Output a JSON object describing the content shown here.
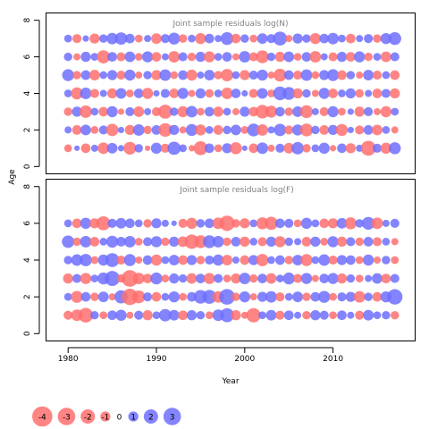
{
  "chart_data": {
    "type": "scatter",
    "xlabel": "Year",
    "ylabel": "Age",
    "x_ticks": [
      1980,
      1990,
      2000,
      2010
    ],
    "y_ticks": [
      0,
      2,
      4,
      6,
      8
    ],
    "xlim": [
      1977.5,
      2019.3
    ],
    "ylim": [
      -0.4,
      8.4
    ],
    "years": [
      1980,
      1981,
      1982,
      1983,
      1984,
      1985,
      1986,
      1987,
      1988,
      1989,
      1990,
      1991,
      1992,
      1993,
      1994,
      1995,
      1996,
      1997,
      1998,
      1999,
      2000,
      2001,
      2002,
      2003,
      2004,
      2005,
      2006,
      2007,
      2008,
      2009,
      2010,
      2011,
      2012,
      2013,
      2014,
      2015,
      2016,
      2017
    ],
    "colors": {
      "negative": "#ff6e6e",
      "positive": "#6e6eff"
    },
    "panels": [
      {
        "title": "Joint sample residuals log(N)",
        "ages": [
          1,
          2,
          3,
          4,
          5,
          6,
          7
        ],
        "residuals": [
          [
            -0.6,
            0.3,
            -0.9,
            0.5,
            -1.3,
            1.1,
            0.4,
            -1.6,
            0.7,
            -0.3,
            1.2,
            -0.8,
            1.7,
            0.6,
            -0.4,
            -1.9,
            0.9,
            -0.6,
            1.0,
            -1.4,
            0.3,
            -0.9,
            1.3,
            -0.5,
            0.8,
            -1.1,
            1.5,
            -0.7,
            0.6,
            1.2,
            -0.4,
            0.9,
            -1.0,
            0.5,
            -2.2,
            0.8,
            -1.2,
            1.4
          ],
          [
            0.5,
            -0.9,
            1.1,
            -0.6,
            0.8,
            -1.5,
            0.4,
            -1.0,
            1.3,
            -0.7,
            0.9,
            -1.8,
            1.0,
            -0.5,
            1.4,
            -1.2,
            0.6,
            -0.9,
            0.7,
            1.1,
            -0.6,
            1.6,
            -1.3,
            0.5,
            1.5,
            -0.8,
            1.2,
            -1.6,
            0.7,
            -0.9,
            1.0,
            -1.4,
            0.4,
            -0.8,
            0.9,
            -1.1,
            0.6,
            -0.5
          ],
          [
            -0.7,
            1.0,
            -1.5,
            0.6,
            -0.9,
            1.2,
            -0.4,
            0.8,
            -1.1,
            0.5,
            -0.8,
            -1.9,
            0.7,
            -1.2,
            1.3,
            -0.6,
            0.9,
            -1.0,
            0.6,
            -0.5,
            1.0,
            -0.9,
            -1.8,
            -1.4,
            0.9,
            -0.7,
            1.1,
            -1.6,
            0.5,
            -0.8,
            1.2,
            -0.6,
            0.4,
            -1.0,
            0.8,
            -0.5,
            -1.2,
            0.6
          ],
          [
            0.6,
            -1.4,
            1.3,
            -0.8,
            0.5,
            -1.0,
            1.1,
            -0.6,
            0.9,
            -1.2,
            0.4,
            0.8,
            -0.9,
            1.2,
            -0.5,
            1.0,
            -0.7,
            0.6,
            -1.3,
            0.9,
            0.4,
            -0.8,
            1.1,
            -0.6,
            1.8,
            1.6,
            -1.0,
            0.7,
            -0.5,
            1.2,
            -0.9,
            0.6,
            1.0,
            -0.7,
            0.5,
            -0.9,
            0.8,
            -1.0
          ],
          [
            1.4,
            -0.7,
            0.9,
            -1.1,
            0.6,
            1.0,
            -0.8,
            1.2,
            -0.5,
            0.7,
            -1.0,
            1.3,
            -0.6,
            0.9,
            -1.2,
            0.5,
            1.1,
            -0.7,
            -1.5,
            0.6,
            -1.0,
            0.8,
            1.2,
            -0.5,
            -1.6,
            0.9,
            -0.8,
            1.3,
            -0.6,
            1.0,
            1.4,
            -0.9,
            0.7,
            -0.5,
            1.1,
            -0.8,
            0.6,
            -0.9
          ],
          [
            0.7,
            -0.5,
            1.0,
            0.6,
            -1.7,
            0.9,
            -0.8,
            1.1,
            -0.6,
            1.2,
            -0.9,
            0.5,
            -1.3,
            0.8,
            -0.7,
            1.0,
            -1.2,
            0.6,
            0.9,
            -0.5,
            1.3,
            -0.8,
            -1.6,
            0.7,
            -1.0,
            1.1,
            -0.6,
            0.9,
            -1.3,
            0.5,
            -0.8,
            1.0,
            -0.9,
            1.2,
            -0.7,
            0.6,
            -1.1,
            0.8
          ],
          [
            0.6,
            -0.8,
            0.4,
            -1.0,
            0.7,
            1.3,
            1.5,
            0.9,
            -0.6,
            0.5,
            -1.1,
            0.8,
            1.4,
            -0.7,
            0.6,
            -1.2,
            0.9,
            0.5,
            1.6,
            -0.9,
            0.7,
            -0.6,
            1.1,
            0.8,
            1.9,
            -0.5,
            1.0,
            0.7,
            -1.2,
            0.9,
            1.3,
            0.6,
            -0.9,
            0.5,
            0.8,
            -0.7,
            1.2,
            1.6
          ]
        ]
      },
      {
        "title": "Joint sample residuals log(F)",
        "ages": [
          1,
          2,
          3,
          4,
          5,
          6
        ],
        "residuals": [
          [
            -0.8,
            -1.3,
            -2.1,
            0.7,
            -0.6,
            0.9,
            1.2,
            -0.5,
            0.8,
            -1.0,
            0.6,
            1.5,
            1.1,
            -0.9,
            1.0,
            0.7,
            -0.6,
            1.3,
            1.9,
            -1.0,
            -0.5,
            -2.0,
            0.6,
            1.1,
            -0.8,
            0.9,
            0.5,
            -0.7,
            1.0,
            0.8,
            -0.6,
            0.9,
            0.5,
            -0.8,
            1.1,
            0.6,
            0.7,
            -0.7
          ],
          [
            0.6,
            -1.4,
            0.9,
            -0.7,
            1.1,
            -0.5,
            1.7,
            -2.6,
            -1.6,
            0.8,
            -0.9,
            0.6,
            1.2,
            -0.6,
            0.9,
            1.8,
            1.9,
            -1.3,
            2.4,
            -0.7,
            1.2,
            -0.5,
            1.0,
            1.3,
            -0.8,
            0.6,
            1.1,
            -0.7,
            0.9,
            1.4,
            -0.6,
            0.8,
            1.0,
            -1.3,
            0.7,
            -0.9,
            1.2,
            2.3
          ],
          [
            -1.0,
            0.8,
            -1.2,
            0.6,
            1.4,
            2.2,
            -0.7,
            -2.7,
            -1.3,
            -0.9,
            1.4,
            -0.6,
            1.0,
            0.7,
            -1.1,
            0.9,
            -1.2,
            0.8,
            -0.6,
            -1.0,
            1.3,
            -0.7,
            0.9,
            -1.1,
            0.6,
            1.4,
            -0.8,
            1.2,
            -0.5,
            0.9,
            1.2,
            -1.0,
            0.7,
            -0.6,
            0.5,
            1.1,
            -0.9,
            0.8
          ],
          [
            0.7,
            1.3,
            1.5,
            -0.6,
            1.2,
            1.9,
            -0.8,
            1.4,
            -0.5,
            0.9,
            -1.2,
            0.6,
            1.1,
            -0.9,
            1.0,
            -0.7,
            0.8,
            1.2,
            -1.1,
            0.5,
            -0.9,
            1.0,
            -1.5,
            0.6,
            0.9,
            -0.7,
            1.1,
            -1.4,
            0.6,
            1.3,
            -0.8,
            1.0,
            0.9,
            -0.6,
            1.2,
            -0.5,
            0.7,
            -0.6
          ],
          [
            1.5,
            -0.7,
            1.3,
            -0.9,
            0.6,
            1.4,
            0.9,
            1.3,
            -0.6,
            0.8,
            1.2,
            -0.7,
            1.0,
            -1.1,
            -2.0,
            -1.6,
            1.6,
            1.3,
            -0.7,
            0.9,
            -1.0,
            0.6,
            -0.8,
            1.0,
            -1.2,
            0.7,
            0.5,
            -0.9,
            1.0,
            -0.6,
            1.2,
            -1.0,
            0.8,
            -0.7,
            0.9,
            -0.8,
            0.6,
            -0.5
          ],
          [
            0.6,
            -0.9,
            1.2,
            -1.0,
            -1.9,
            0.8,
            1.1,
            0.9,
            0.6,
            -0.7,
            1.0,
            0.5,
            0.3,
            -0.8,
            -1.2,
            0.7,
            0.9,
            -1.3,
            -2.3,
            -0.7,
            -1.0,
            0.6,
            -1.4,
            -1.7,
            0.9,
            0.8,
            -0.6,
            1.2,
            0.6,
            -0.9,
            -1.0,
            1.1,
            -1.4,
            0.7,
            1.6,
            -1.3,
            0.5,
            0.8
          ]
        ]
      }
    ],
    "legend": {
      "values": [
        -4,
        -3,
        -2,
        -1,
        0,
        1,
        2,
        3
      ],
      "labels": [
        "-4",
        "-3",
        "-2",
        "-1",
        "0",
        "1",
        "2",
        "3"
      ]
    }
  }
}
